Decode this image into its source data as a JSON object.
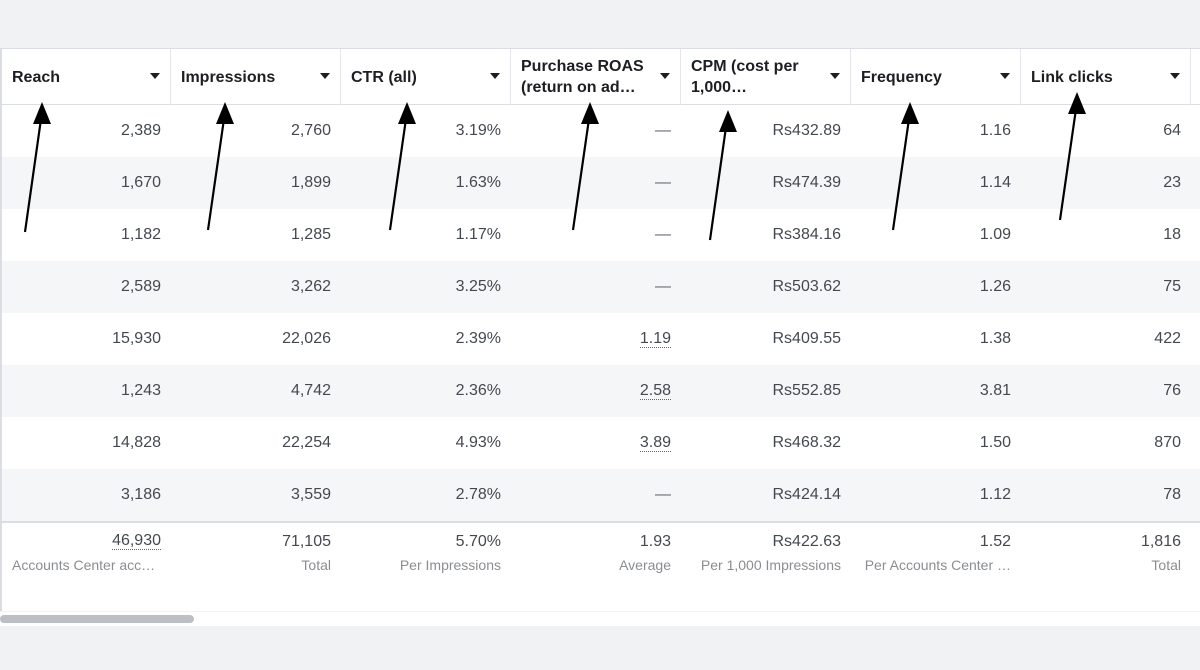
{
  "columns": [
    {
      "label": "Reach"
    },
    {
      "label": "Impressions"
    },
    {
      "label": "CTR (all)"
    },
    {
      "label": "Purchase ROAS (return on ad…"
    },
    {
      "label": "CPM (cost per 1,000…"
    },
    {
      "label": "Frequency"
    },
    {
      "label": "Link clicks"
    }
  ],
  "rows": [
    [
      "2,389",
      "2,760",
      "3.19%",
      "—",
      "Rs432.89",
      "1.16",
      "64"
    ],
    [
      "1,670",
      "1,899",
      "1.63%",
      "—",
      "Rs474.39",
      "1.14",
      "23"
    ],
    [
      "1,182",
      "1,285",
      "1.17%",
      "—",
      "Rs384.16",
      "1.09",
      "18"
    ],
    [
      "2,589",
      "3,262",
      "3.25%",
      "—",
      "Rs503.62",
      "1.26",
      "75"
    ],
    [
      "15,930",
      "22,026",
      "2.39%",
      "1.19",
      "Rs409.55",
      "1.38",
      "422"
    ],
    [
      "1,243",
      "4,742",
      "2.36%",
      "2.58",
      "Rs552.85",
      "3.81",
      "76"
    ],
    [
      "14,828",
      "22,254",
      "4.93%",
      "3.89",
      "Rs468.32",
      "1.50",
      "870"
    ],
    [
      "3,186",
      "3,559",
      "2.78%",
      "—",
      "Rs424.14",
      "1.12",
      "78"
    ]
  ],
  "summary": [
    {
      "value": "46,930",
      "label": "Accounts Center acco…"
    },
    {
      "value": "71,105",
      "label": "Total"
    },
    {
      "value": "5.70%",
      "label": "Per Impressions"
    },
    {
      "value": "1.93",
      "label": "Average"
    },
    {
      "value": "Rs422.63",
      "label": "Per 1,000 Impressions"
    },
    {
      "value": "1.52",
      "label": "Per Accounts Center …"
    },
    {
      "value": "1,816",
      "label": "Total"
    }
  ],
  "colors": {
    "arrow": "#000000",
    "alt_row": "#f5f6f7",
    "border": "#dadde1"
  }
}
